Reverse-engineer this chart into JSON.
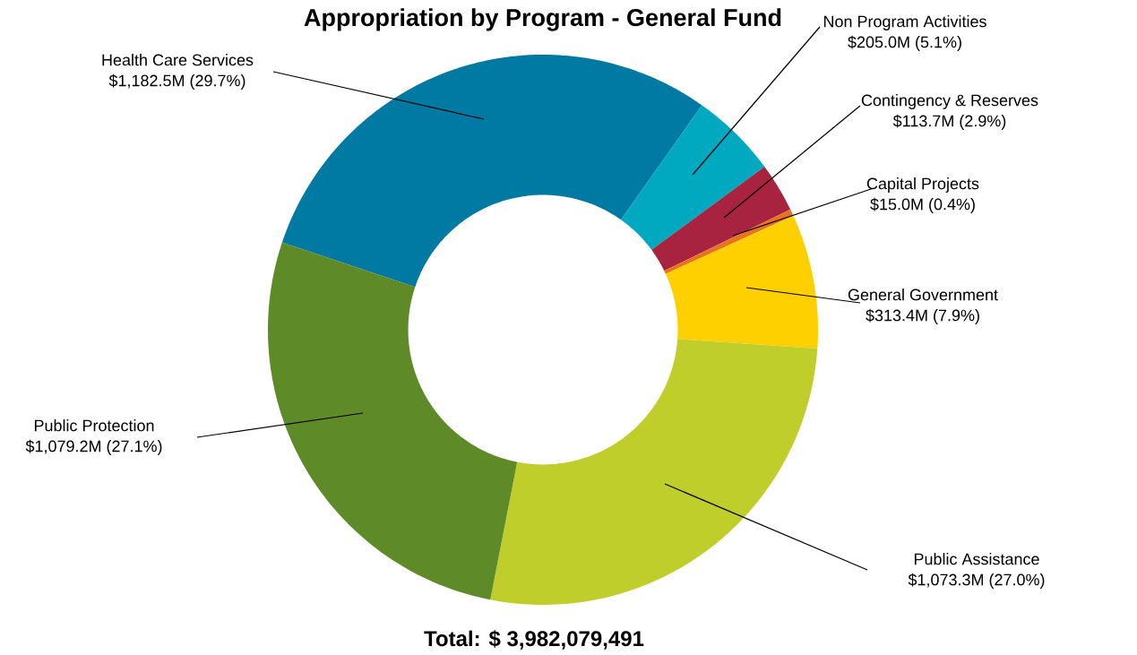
{
  "chart_data": {
    "type": "donut",
    "title": "Appropriation by Program - General Fund",
    "categories": [
      "Health Care Services",
      "Non Program Activities",
      "Contingency & Reserves",
      "Capital Projects",
      "General Government",
      "Public Assistance",
      "Public Protection"
    ],
    "values": [
      29.7,
      5.1,
      2.9,
      0.4,
      7.9,
      27.0,
      27.1
    ],
    "value_labels": [
      "$1,182.5M (29.7%)",
      "$205.0M (5.1%)",
      "$113.7M (2.9%)",
      "$15.0M (0.4%)",
      "$313.4M (7.9%)",
      "$1,073.3M (27.0%)",
      "$1,079.2M (27.1%)"
    ],
    "colors": [
      "#0079a3",
      "#00a9c0",
      "#a8233f",
      "#e8731f",
      "#ffd000",
      "#bfce2a",
      "#5e8a27"
    ],
    "annotations": [
      "**Total: $ 3,982,079,491**"
    ]
  }
}
